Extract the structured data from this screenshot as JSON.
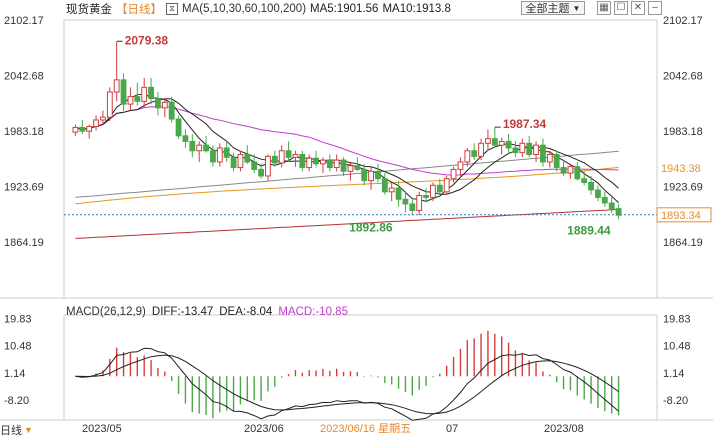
{
  "header": {
    "name": "现货黄金",
    "period": "【日线】",
    "ma_params": "MA(5,10,30,60,100,200)",
    "ma5": "MA5:1901.56",
    "ma10": "MA10:1913.8",
    "theme_label": "全部主题",
    "theme_arrow": "▼"
  },
  "macd_header": {
    "params": "MACD(26,12,9)",
    "diff": "DIFF:-13.47",
    "dea": "DEA:-8.04",
    "macd": "MACD:-10.85"
  },
  "bottom_tab": {
    "label": "日线",
    "arrow": "▼"
  },
  "colors": {
    "up": "#d43c3c",
    "down": "#48a84a",
    "ma5": "#222222",
    "ma10": "#222222",
    "ma30": "#c33bd1",
    "ma60": "#e6961f",
    "ma100": "#888888",
    "ma200": "#b23232",
    "last_price": "#e58a2e"
  },
  "chart_data": {
    "type": "candlestick",
    "title": "现货黄金 日线",
    "price_axis": {
      "ticks": [
        2102.17,
        2042.68,
        1983.18,
        1923.69,
        1864.19
      ],
      "range": [
        1864.19,
        2102.17
      ]
    },
    "last_price": 1893.34,
    "ma_line_price_label": 1943.38,
    "annotations": [
      {
        "text": "2079.38",
        "value": 2079.38,
        "type": "high"
      },
      {
        "text": "1987.34",
        "value": 1987.34,
        "type": "high"
      },
      {
        "text": "1892.86",
        "value": 1892.86,
        "type": "low"
      },
      {
        "text": "1889.44",
        "value": 1889.44,
        "type": "low"
      }
    ],
    "x_axis_labels": [
      "2023/05",
      "2023/06",
      "2023/06/16 星期五",
      "07",
      "2023/08"
    ],
    "ohlc": [
      [
        1982,
        1990,
        1978,
        1987
      ],
      [
        1987,
        1995,
        1980,
        1983
      ],
      [
        1983,
        1990,
        1975,
        1988
      ],
      [
        1988,
        2000,
        1984,
        1995
      ],
      [
        1995,
        2005,
        1990,
        1998
      ],
      [
        1998,
        2030,
        1994,
        2025
      ],
      [
        2025,
        2079,
        2015,
        2038
      ],
      [
        2038,
        2045,
        2005,
        2012
      ],
      [
        2012,
        2030,
        2005,
        2020
      ],
      [
        2020,
        2035,
        2010,
        2015
      ],
      [
        2015,
        2040,
        2008,
        2030
      ],
      [
        2030,
        2040,
        2012,
        2018
      ],
      [
        2018,
        2025,
        2000,
        2008
      ],
      [
        2008,
        2018,
        1998,
        2014
      ],
      [
        2014,
        2020,
        1992,
        1996
      ],
      [
        1996,
        2000,
        1975,
        1978
      ],
      [
        1978,
        1985,
        1965,
        1972
      ],
      [
        1972,
        1980,
        1955,
        1962
      ],
      [
        1962,
        1972,
        1950,
        1968
      ],
      [
        1968,
        1978,
        1960,
        1962
      ],
      [
        1962,
        1968,
        1945,
        1950
      ],
      [
        1950,
        1970,
        1945,
        1965
      ],
      [
        1965,
        1972,
        1950,
        1955
      ],
      [
        1955,
        1960,
        1940,
        1944
      ],
      [
        1944,
        1962,
        1940,
        1958
      ],
      [
        1958,
        1968,
        1948,
        1950
      ],
      [
        1950,
        1958,
        1938,
        1942
      ],
      [
        1942,
        1948,
        1932,
        1935
      ],
      [
        1935,
        1958,
        1930,
        1956
      ],
      [
        1956,
        1962,
        1945,
        1949
      ],
      [
        1949,
        1968,
        1944,
        1962
      ],
      [
        1962,
        1972,
        1950,
        1955
      ],
      [
        1955,
        1962,
        1945,
        1958
      ],
      [
        1958,
        1962,
        1940,
        1944
      ],
      [
        1944,
        1958,
        1940,
        1954
      ],
      [
        1954,
        1962,
        1944,
        1948
      ],
      [
        1948,
        1955,
        1938,
        1952
      ],
      [
        1952,
        1958,
        1940,
        1944
      ],
      [
        1944,
        1958,
        1940,
        1952
      ],
      [
        1952,
        1955,
        1935,
        1940
      ],
      [
        1940,
        1950,
        1930,
        1946
      ],
      [
        1946,
        1955,
        1940,
        1942
      ],
      [
        1942,
        1948,
        1925,
        1930
      ],
      [
        1930,
        1945,
        1920,
        1940
      ],
      [
        1940,
        1948,
        1928,
        1932
      ],
      [
        1932,
        1938,
        1915,
        1918
      ],
      [
        1918,
        1928,
        1908,
        1922
      ],
      [
        1922,
        1930,
        1902,
        1910
      ],
      [
        1910,
        1918,
        1896,
        1905
      ],
      [
        1905,
        1912,
        1893,
        1898
      ],
      [
        1898,
        1918,
        1893,
        1914
      ],
      [
        1914,
        1922,
        1908,
        1912
      ],
      [
        1912,
        1928,
        1908,
        1925
      ],
      [
        1925,
        1932,
        1915,
        1918
      ],
      [
        1918,
        1935,
        1915,
        1932
      ],
      [
        1932,
        1945,
        1928,
        1942
      ],
      [
        1942,
        1955,
        1935,
        1950
      ],
      [
        1950,
        1965,
        1945,
        1962
      ],
      [
        1962,
        1970,
        1952,
        1956
      ],
      [
        1956,
        1975,
        1952,
        1970
      ],
      [
        1970,
        1985,
        1962,
        1975
      ],
      [
        1975,
        1987,
        1965,
        1968
      ],
      [
        1968,
        1976,
        1958,
        1972
      ],
      [
        1972,
        1980,
        1960,
        1965
      ],
      [
        1965,
        1972,
        1955,
        1960
      ],
      [
        1960,
        1975,
        1955,
        1970
      ],
      [
        1970,
        1978,
        1955,
        1958
      ],
      [
        1958,
        1972,
        1950,
        1968
      ],
      [
        1968,
        1975,
        1945,
        1950
      ],
      [
        1950,
        1962,
        1944,
        1958
      ],
      [
        1958,
        1962,
        1940,
        1944
      ],
      [
        1944,
        1952,
        1935,
        1938
      ],
      [
        1938,
        1948,
        1932,
        1945
      ],
      [
        1945,
        1950,
        1930,
        1932
      ],
      [
        1932,
        1940,
        1925,
        1928
      ],
      [
        1928,
        1935,
        1915,
        1920
      ],
      [
        1920,
        1925,
        1908,
        1912
      ],
      [
        1912,
        1918,
        1902,
        1906
      ],
      [
        1906,
        1912,
        1895,
        1900
      ],
      [
        1900,
        1905,
        1889,
        1893
      ]
    ],
    "macd_axis": {
      "ticks": [
        19.83,
        10.48,
        1.14,
        -8.2
      ]
    },
    "macd": {
      "diff": -13.47,
      "dea": -8.04,
      "macd": -10.85
    }
  }
}
